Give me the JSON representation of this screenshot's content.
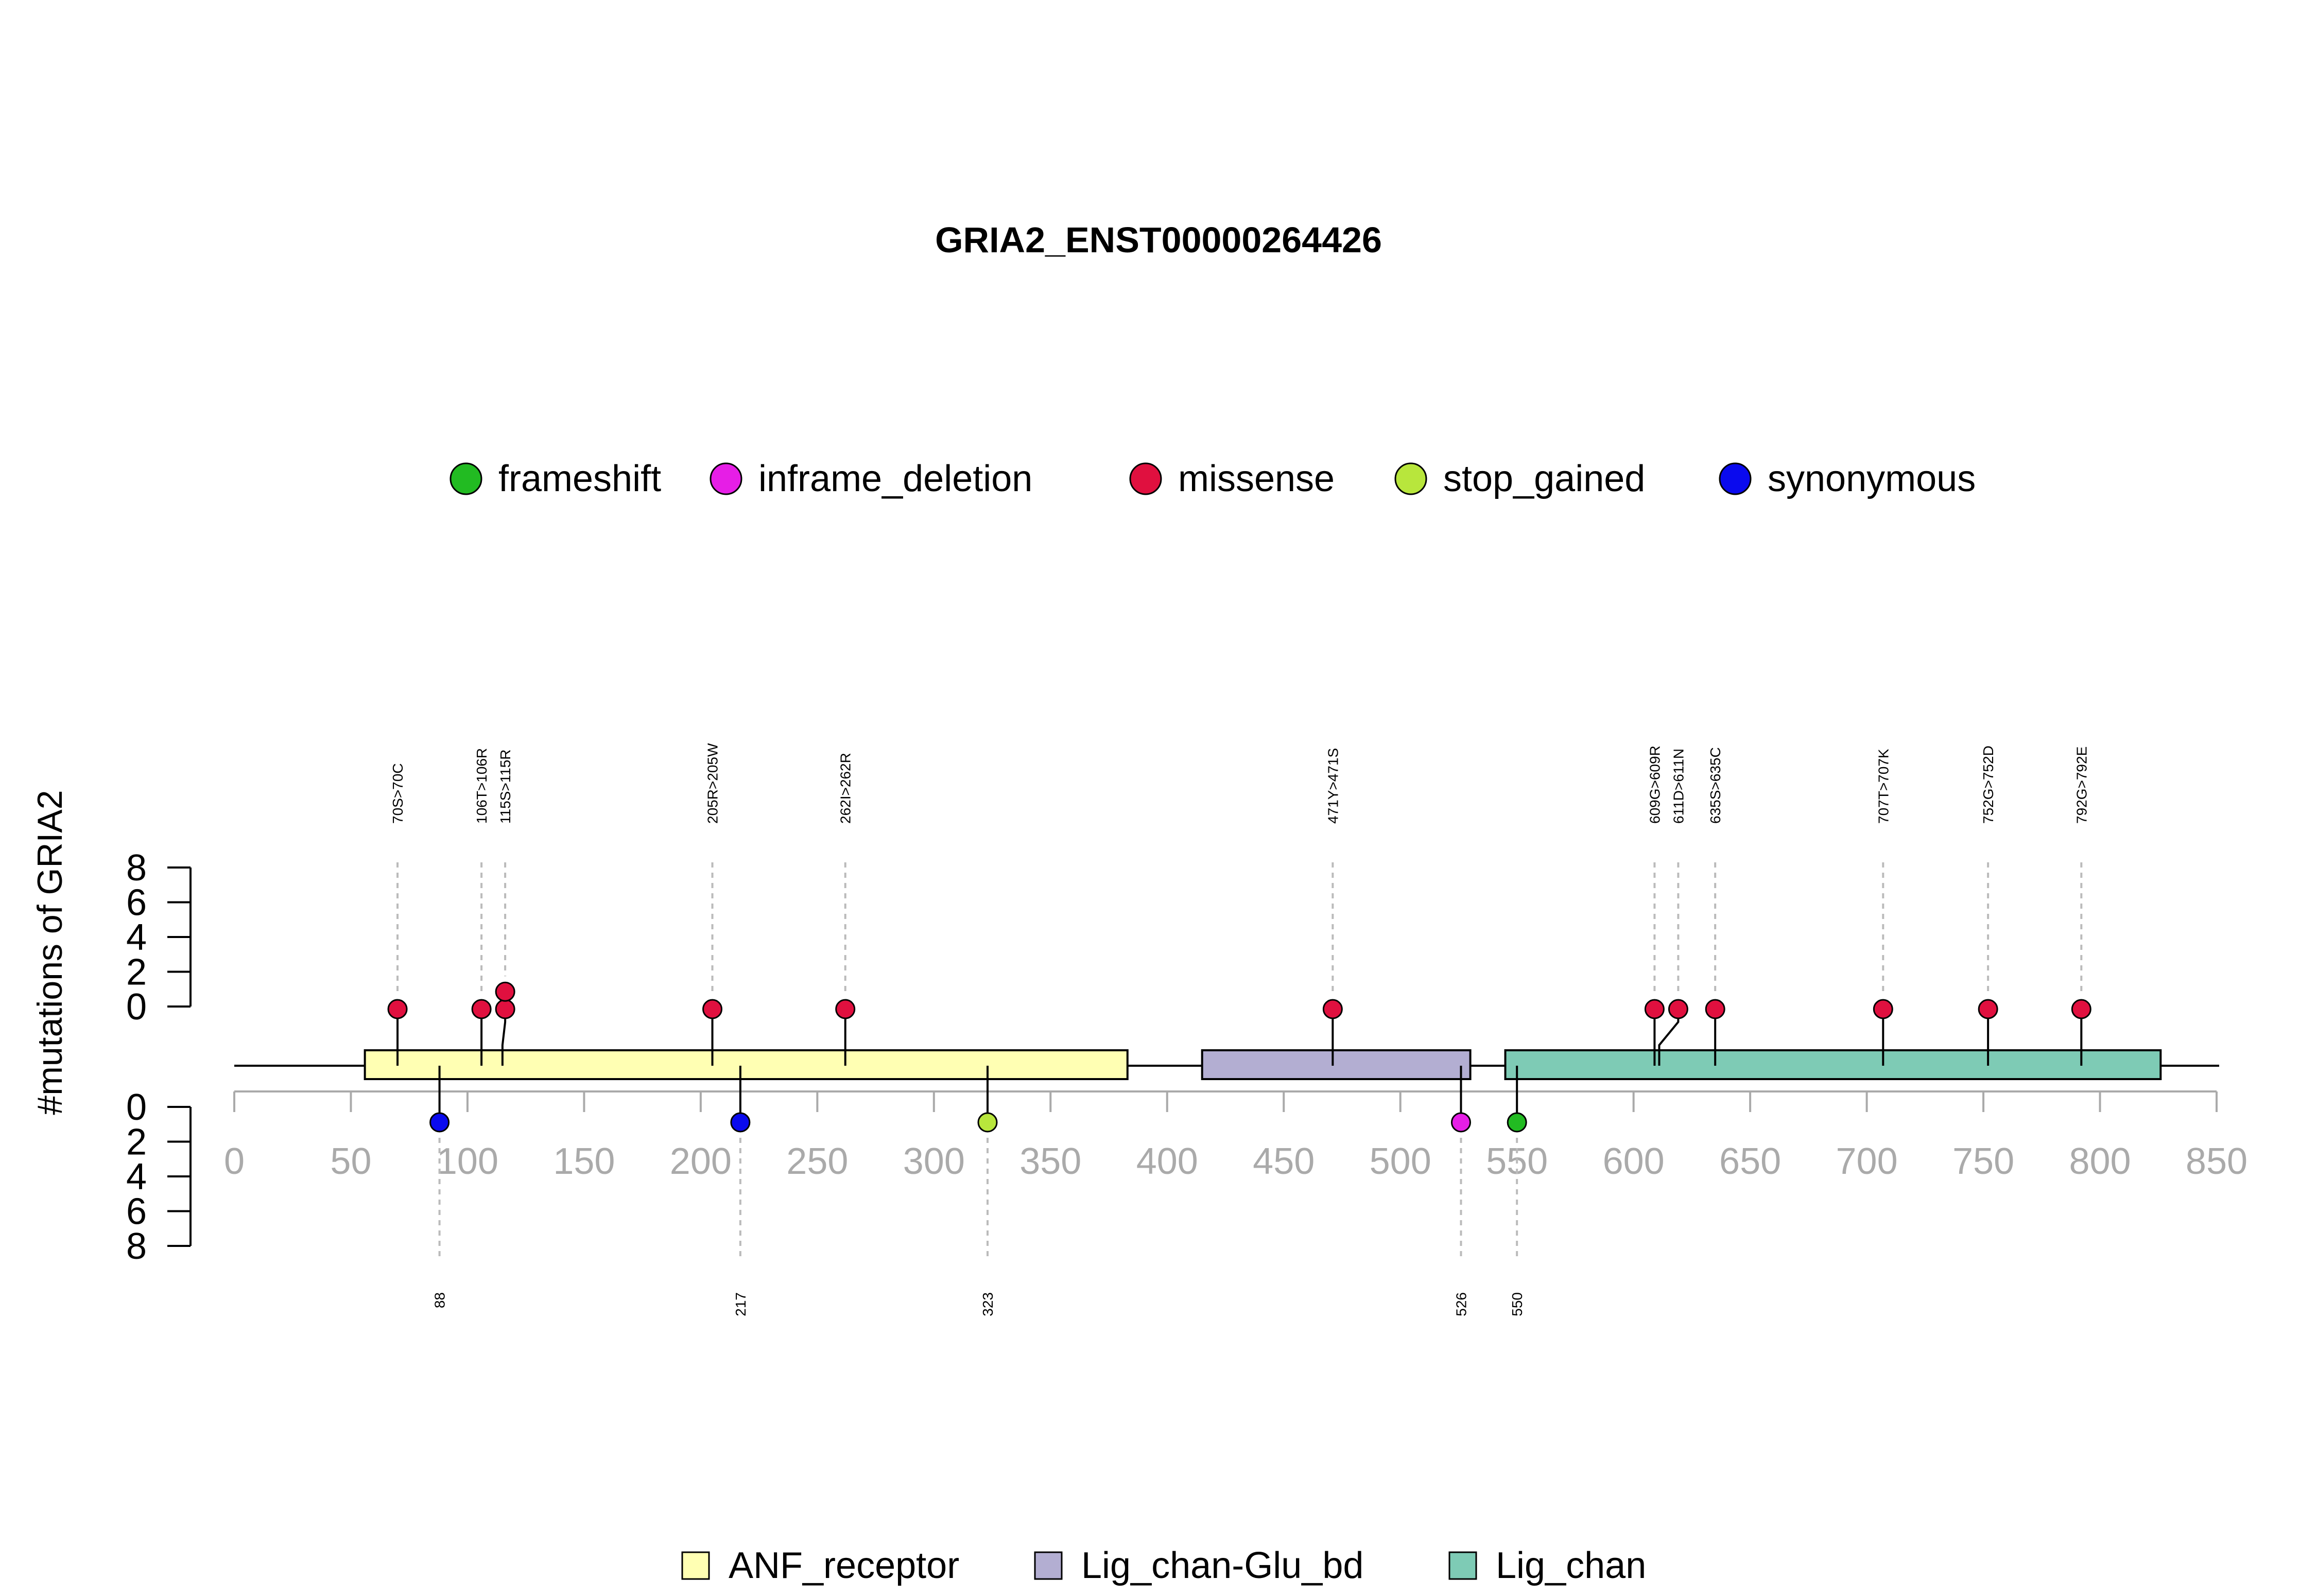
{
  "chart_data": {
    "type": "lollipop",
    "title": "GRIA2_ENST00000264426",
    "ylabel": "#mutations of GRIA2",
    "xlim": [
      0,
      850
    ],
    "x_ticks": [
      "0",
      "50",
      "100",
      "150",
      "200",
      "250",
      "300",
      "350",
      "400",
      "450",
      "500",
      "550",
      "600",
      "650",
      "700",
      "750",
      "800",
      "850"
    ],
    "y_ticks": [
      "0",
      "2",
      "4",
      "6",
      "8"
    ],
    "mutation_legend": [
      {
        "label": "frameshift",
        "color": "#22bb22"
      },
      {
        "label": "inframe_deletion",
        "color": "#e61ee6"
      },
      {
        "label": "missense",
        "color": "#e0103f"
      },
      {
        "label": "stop_gained",
        "color": "#b8e63c"
      },
      {
        "label": "synonymous",
        "color": "#0a0aee"
      }
    ],
    "domains": [
      {
        "name": "ANF_receptor",
        "start": 56,
        "end": 383,
        "color": "#ffffb3"
      },
      {
        "name": "Lig_chan-Glu_bd",
        "start": 415,
        "end": 530,
        "color": "#b3aed2"
      },
      {
        "name": "Lig_chan",
        "start": 545,
        "end": 826,
        "color": "#7ecbb5"
      }
    ],
    "upper_mutations": [
      {
        "pos": 70,
        "label": "70S>70C",
        "count": 1,
        "type": "missense"
      },
      {
        "pos": 106,
        "label": "106T>106R",
        "count": 1,
        "type": "missense"
      },
      {
        "pos": 115,
        "label": "115S>115R",
        "count": 2,
        "type": "missense"
      },
      {
        "pos": 205,
        "label": "205R>205W",
        "count": 1,
        "type": "missense"
      },
      {
        "pos": 262,
        "label": "262I>262R",
        "count": 1,
        "type": "missense"
      },
      {
        "pos": 471,
        "label": "471Y>471S",
        "count": 1,
        "type": "missense"
      },
      {
        "pos": 609,
        "label": "609G>609R",
        "count": 1,
        "type": "missense"
      },
      {
        "pos": 611,
        "label": "611D>611N",
        "count": 1,
        "type": "missense"
      },
      {
        "pos": 635,
        "label": "635S>635C",
        "count": 1,
        "type": "missense"
      },
      {
        "pos": 707,
        "label": "707T>707K",
        "count": 1,
        "type": "missense"
      },
      {
        "pos": 752,
        "label": "752G>752D",
        "count": 1,
        "type": "missense"
      },
      {
        "pos": 792,
        "label": "792G>792E",
        "count": 1,
        "type": "missense"
      }
    ],
    "lower_mutations": [
      {
        "pos": 88,
        "label": "88",
        "count": 1,
        "type": "synonymous"
      },
      {
        "pos": 217,
        "label": "217",
        "count": 1,
        "type": "synonymous"
      },
      {
        "pos": 323,
        "label": "323",
        "count": 1,
        "type": "stop_gained"
      },
      {
        "pos": 526,
        "label": "526",
        "count": 1,
        "type": "inframe_deletion"
      },
      {
        "pos": 550,
        "label": "550",
        "count": 1,
        "type": "frameshift"
      }
    ]
  }
}
